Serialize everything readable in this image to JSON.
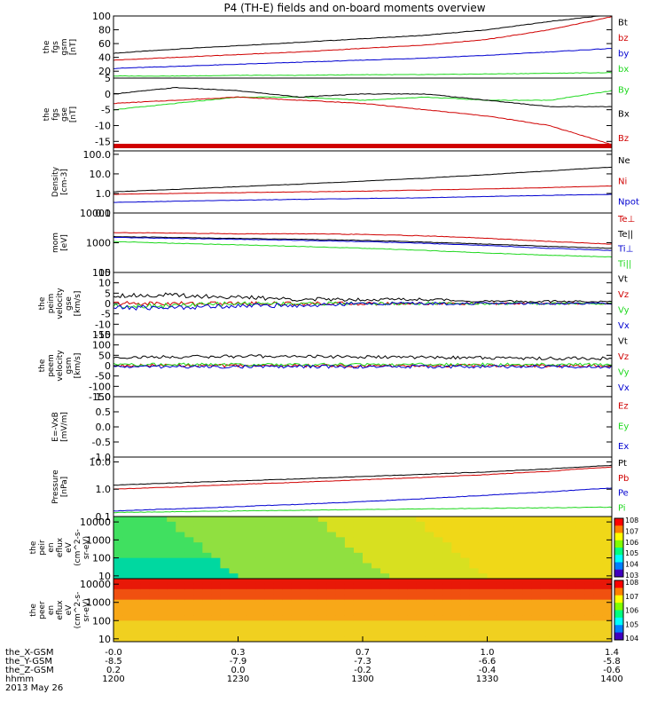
{
  "title": "P4 (TH-E) fields and on-board moments overview",
  "colors": {
    "black": "#000000",
    "red": "#d00000",
    "green": "#1ed81e",
    "blue": "#0000d0",
    "axis": "#000000"
  },
  "chart_data": [
    {
      "type": "line",
      "ylabel": [
        "the",
        "fgs",
        "gsm",
        "[nT]"
      ],
      "ylim": [
        10,
        100
      ],
      "scale": "linear",
      "yticks": [
        20,
        40,
        60,
        80,
        100
      ],
      "tick_labels": [
        "20",
        "40",
        "60",
        "80",
        "100"
      ],
      "legend": [
        "Bt",
        "bz",
        "by",
        "bx"
      ],
      "series": [
        {
          "name": "Bt",
          "color": "black",
          "values": [
            46,
            52,
            57,
            62,
            67,
            72,
            80,
            92,
            102
          ]
        },
        {
          "name": "bz",
          "color": "red",
          "values": [
            36,
            40,
            44,
            48,
            53,
            58,
            66,
            80,
            99
          ]
        },
        {
          "name": "by",
          "color": "blue",
          "values": [
            24,
            27,
            30,
            33,
            36,
            39,
            43,
            48,
            53
          ]
        },
        {
          "name": "bx",
          "color": "green",
          "values": [
            13,
            13,
            14,
            14,
            15,
            15,
            16,
            17,
            18
          ]
        }
      ]
    },
    {
      "type": "line",
      "ylabel": [
        "the",
        "fgs",
        "gse",
        "[nT]"
      ],
      "ylim": [
        -18,
        5
      ],
      "scale": "linear",
      "yticks": [
        -15,
        -10,
        -5,
        0,
        5
      ],
      "tick_labels": [
        "-15",
        "-10",
        "-5",
        "0",
        "5"
      ],
      "legend": [
        "By",
        "Bx",
        "Bz"
      ],
      "series": [
        {
          "name": "By",
          "color": "green",
          "values": [
            -5,
            -3,
            -1,
            -1,
            -2,
            -1,
            -2,
            -2,
            1
          ]
        },
        {
          "name": "Bx",
          "color": "black",
          "values": [
            0,
            2,
            1,
            -1,
            0,
            0,
            -2,
            -4,
            -4
          ]
        },
        {
          "name": "Bz",
          "color": "red",
          "values": [
            -3,
            -2,
            -1,
            -2,
            -3,
            -5,
            -7,
            -10,
            -16
          ]
        }
      ]
    },
    {
      "type": "line",
      "ylabel": [
        "Density",
        "[cm-3]"
      ],
      "ylim": [
        0.1,
        150
      ],
      "scale": "log",
      "yticks": [
        0.1,
        1,
        10,
        100
      ],
      "tick_labels": [
        "0.1",
        "1.0",
        "10.0",
        "100.0"
      ],
      "legend": [
        "Ne",
        "Ni",
        "Npot"
      ],
      "series": [
        {
          "name": "Ne",
          "color": "black",
          "values": [
            1.2,
            1.6,
            2.2,
            3.0,
            4.2,
            6,
            9,
            14,
            22
          ]
        },
        {
          "name": "Ni",
          "color": "red",
          "values": [
            0.9,
            1.0,
            1.1,
            1.2,
            1.3,
            1.5,
            1.7,
            2.0,
            2.4
          ]
        },
        {
          "name": "Npot",
          "color": "blue",
          "values": [
            0.35,
            0.4,
            0.45,
            0.5,
            0.55,
            0.6,
            0.7,
            0.8,
            0.9
          ]
        }
      ]
    },
    {
      "type": "line",
      "ylabel": [
        "mom",
        "[eV]"
      ],
      "ylim": [
        100,
        10000
      ],
      "scale": "log",
      "yticks": [
        100,
        1000,
        10000
      ],
      "tick_labels": [
        "100",
        "1000",
        "10000"
      ],
      "legend": [
        "Te⊥",
        "Te||",
        "Ti⊥",
        "Ti||"
      ],
      "series": [
        {
          "name": "Te⊥",
          "color": "red",
          "values": [
            2200,
            2100,
            2000,
            2000,
            1900,
            1700,
            1400,
            1100,
            900
          ]
        },
        {
          "name": "Te||",
          "color": "black",
          "values": [
            1600,
            1500,
            1400,
            1300,
            1200,
            1050,
            900,
            750,
            650
          ]
        },
        {
          "name": "Ti⊥",
          "color": "blue",
          "values": [
            1500,
            1400,
            1300,
            1200,
            1100,
            950,
            800,
            650,
            550
          ]
        },
        {
          "name": "Ti||",
          "color": "green",
          "values": [
            1100,
            950,
            850,
            750,
            650,
            550,
            450,
            380,
            330
          ]
        }
      ]
    },
    {
      "type": "line",
      "ylabel": [
        "the",
        "peim",
        "velocity",
        "gse",
        "[km/s]"
      ],
      "ylim": [
        -15,
        15
      ],
      "scale": "linear",
      "yticks": [
        -15,
        -10,
        -5,
        0,
        5,
        10,
        15
      ],
      "tick_labels": [
        "-15",
        "-10",
        "-5",
        "0",
        "5",
        "10",
        "15"
      ],
      "legend": [
        "Vt",
        "Vz",
        "Vy",
        "Vx"
      ],
      "series": [
        {
          "name": "Vt",
          "color": "black",
          "values": [
            4,
            4,
            3,
            2,
            2,
            2,
            1,
            1,
            1
          ]
        },
        {
          "name": "Vz",
          "color": "red",
          "values": [
            0,
            0,
            0,
            0,
            0,
            0,
            0,
            0,
            0
          ]
        },
        {
          "name": "Vy",
          "color": "green",
          "values": [
            -1,
            -1,
            0,
            0,
            0,
            0,
            0,
            0,
            0
          ]
        },
        {
          "name": "Vx",
          "color": "blue",
          "values": [
            -2,
            -2,
            -1,
            -1,
            0,
            0,
            0,
            0,
            0
          ]
        }
      ]
    },
    {
      "type": "line",
      "ylabel": [
        "the",
        "peem",
        "velocity",
        "gsm",
        "[km/s]"
      ],
      "ylim": [
        -150,
        150
      ],
      "scale": "linear",
      "yticks": [
        -150,
        -100,
        -50,
        0,
        50,
        100,
        150
      ],
      "tick_labels": [
        "-150",
        "-100",
        "-50",
        "0",
        "50",
        "100",
        "150"
      ],
      "legend": [
        "Vt",
        "Vz",
        "Vy",
        "Vx"
      ],
      "series": [
        {
          "name": "Vt",
          "color": "black",
          "values": [
            40,
            42,
            45,
            45,
            42,
            40,
            38,
            35,
            35
          ]
        },
        {
          "name": "Vz",
          "color": "red",
          "values": [
            0,
            0,
            0,
            0,
            0,
            0,
            0,
            0,
            0
          ]
        },
        {
          "name": "Vy",
          "color": "green",
          "values": [
            5,
            5,
            5,
            5,
            5,
            5,
            5,
            5,
            5
          ]
        },
        {
          "name": "Vx",
          "color": "blue",
          "values": [
            -5,
            -5,
            -5,
            -5,
            -5,
            -5,
            -5,
            -5,
            -5
          ]
        }
      ]
    },
    {
      "type": "line",
      "ylabel": [
        "E=-VxB",
        "[mV/m]"
      ],
      "ylim": [
        -1,
        1
      ],
      "scale": "linear",
      "yticks": [
        -1,
        -0.5,
        0,
        0.5,
        1
      ],
      "tick_labels": [
        "-1.0",
        "-0.5",
        "0.0",
        "0.5",
        "1.0"
      ],
      "legend": [
        "Ez",
        "Ey",
        "Ex"
      ],
      "series": []
    },
    {
      "type": "line",
      "ylabel": [
        "Pressure",
        "[nPa]"
      ],
      "ylim": [
        0.1,
        15
      ],
      "scale": "log",
      "yticks": [
        0.1,
        1,
        10
      ],
      "tick_labels": [
        "0.1",
        "1.0",
        "10.0"
      ],
      "legend": [
        "Pt",
        "Pb",
        "Pe",
        "Pi"
      ],
      "series": [
        {
          "name": "Pt",
          "color": "black",
          "values": [
            1.4,
            1.7,
            2.0,
            2.4,
            2.9,
            3.5,
            4.3,
            5.5,
            7.5
          ]
        },
        {
          "name": "Pb",
          "color": "red",
          "values": [
            1.0,
            1.2,
            1.5,
            1.8,
            2.2,
            2.7,
            3.4,
            4.5,
            6.5
          ]
        },
        {
          "name": "Pe",
          "color": "blue",
          "values": [
            0.16,
            0.19,
            0.23,
            0.28,
            0.35,
            0.45,
            0.6,
            0.8,
            1.1
          ]
        },
        {
          "name": "Pi",
          "color": "green",
          "values": [
            0.14,
            0.15,
            0.16,
            0.17,
            0.18,
            0.19,
            0.2,
            0.21,
            0.22
          ]
        }
      ]
    },
    {
      "type": "heatmap",
      "ylabel": [
        "the",
        "peir",
        "en",
        "eflux",
        "eV",
        "(cm^2-s-",
        "sr-eV)"
      ],
      "ylim": [
        7,
        20000
      ],
      "scale": "log",
      "yticks": [
        10,
        100,
        1000,
        10000
      ],
      "tick_labels": [
        "10",
        "100",
        "1000",
        "10000"
      ],
      "colorbar_labels": [
        "10^3",
        "10^4",
        "10^5",
        "10^6",
        "10^7",
        "10^8"
      ]
    },
    {
      "type": "heatmap",
      "ylabel": [
        "the",
        "peer",
        "en",
        "eflux",
        "eV",
        "(cm^2-s-",
        "sr-eV)"
      ],
      "ylim": [
        7,
        20000
      ],
      "scale": "log",
      "yticks": [
        10,
        100,
        1000,
        10000
      ],
      "tick_labels": [
        "10",
        "100",
        "1000",
        "10000"
      ],
      "colorbar_labels": [
        "10^4",
        "10^5",
        "10^6",
        "10^7",
        "10^8"
      ]
    }
  ],
  "xaxis": {
    "ticks": [
      1200,
      1230,
      1300,
      1330,
      1400
    ],
    "rows": [
      {
        "label": "the_X-GSM",
        "values": [
          "-0.0",
          "0.3",
          "0.7",
          "1.0",
          "1.4"
        ]
      },
      {
        "label": "the_Y-GSM",
        "values": [
          "-8.5",
          "-7.9",
          "-7.3",
          "-6.6",
          "-5.8"
        ]
      },
      {
        "label": "the_Z-GSM",
        "values": [
          "0.2",
          "0.0",
          "-0.2",
          "-0.4",
          "-0.6"
        ]
      },
      {
        "label": "hhmm",
        "values": [
          "1200",
          "1230",
          "1300",
          "1330",
          "1400"
        ]
      }
    ],
    "date": "2013 May 26"
  }
}
